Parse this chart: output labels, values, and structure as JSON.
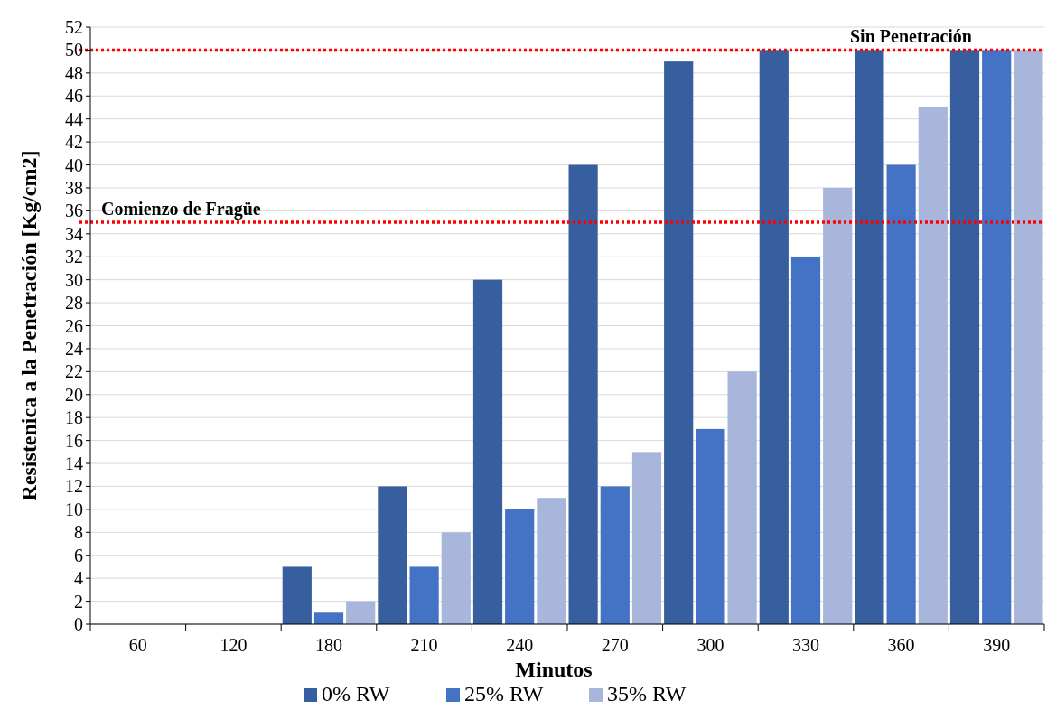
{
  "chart_data": {
    "type": "bar",
    "xlabel": "Minutos",
    "ylabel": "Resistenica a la Penetración [Kg/cm2]",
    "categories": [
      "60",
      "120",
      "180",
      "210",
      "240",
      "270",
      "300",
      "330",
      "360",
      "390"
    ],
    "series": [
      {
        "name": "0% RW",
        "color": "#375e9f",
        "values": [
          0,
          0,
          5,
          12,
          30,
          40,
          49,
          50,
          50,
          50
        ]
      },
      {
        "name": "25% RW",
        "color": "#4472c4",
        "values": [
          0,
          0,
          1,
          5,
          10,
          12,
          17,
          32,
          40,
          50
        ]
      },
      {
        "name": "35% RW",
        "color": "#a9b6db",
        "values": [
          0,
          0,
          2,
          8,
          11,
          15,
          22,
          38,
          45,
          50
        ]
      }
    ],
    "ylim": [
      0,
      52
    ],
    "yticks": [
      0,
      2,
      4,
      6,
      8,
      10,
      12,
      14,
      16,
      18,
      20,
      22,
      24,
      26,
      28,
      30,
      32,
      34,
      36,
      38,
      40,
      42,
      44,
      46,
      48,
      50,
      52
    ],
    "grid": "y",
    "legend": "bottom",
    "ref_lines": [
      {
        "axis": "y",
        "value": 50,
        "label": "Sin Penetración",
        "color": "#ff0000",
        "line_style": "dotted"
      },
      {
        "axis": "y",
        "value": 35,
        "label": "Comienzo de Fragüe",
        "color": "#ff0000",
        "line_style": "dotted"
      }
    ]
  }
}
